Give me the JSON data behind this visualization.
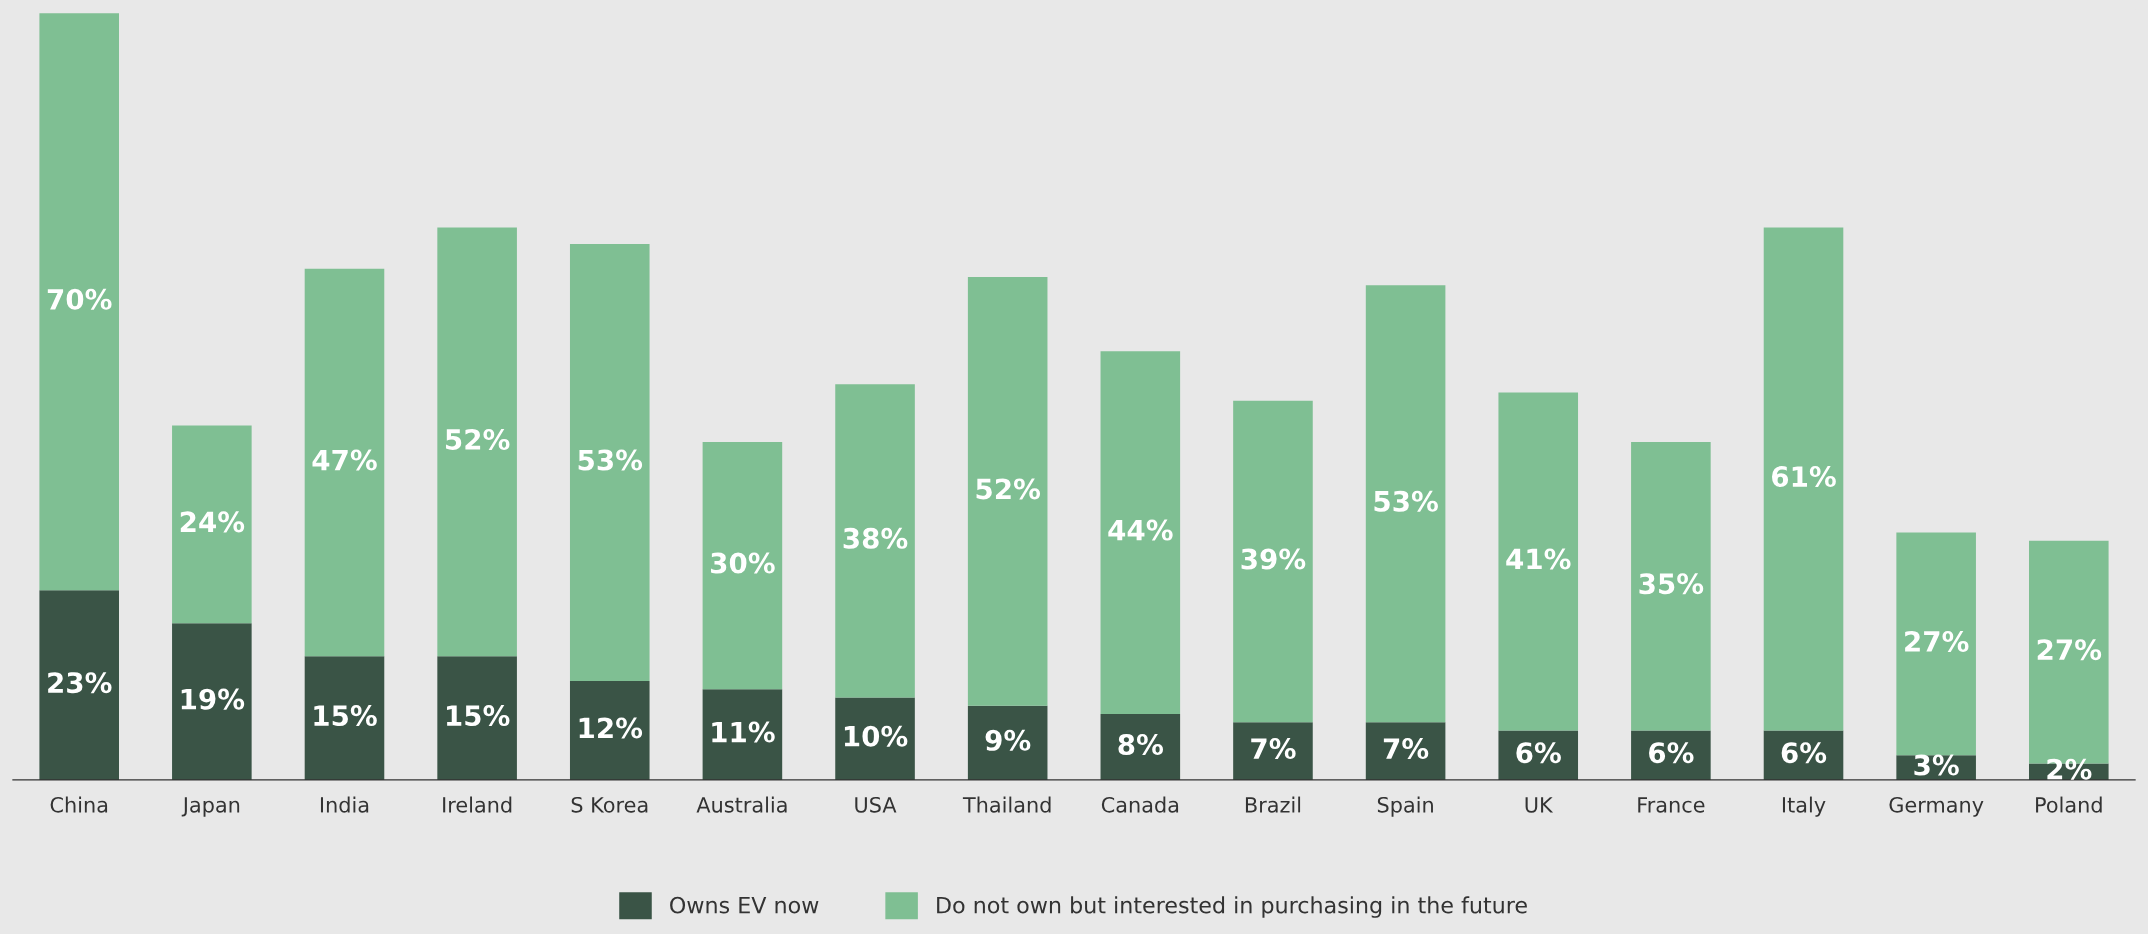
{
  "chart_data": {
    "type": "bar",
    "stacked": true,
    "categories": [
      "China",
      "Japan",
      "India",
      "Ireland",
      "S Korea",
      "Australia",
      "USA",
      "Thailand",
      "Canada",
      "Brazil",
      "Spain",
      "UK",
      "France",
      "Italy",
      "Germany",
      "Poland"
    ],
    "series": [
      {
        "name": "Owns EV now",
        "color": "#3a5446",
        "values": [
          23,
          19,
          15,
          15,
          12,
          11,
          10,
          9,
          8,
          7,
          7,
          6,
          6,
          6,
          3,
          2
        ],
        "value_labels": [
          "23%",
          "19%",
          "15%",
          "15%",
          "12%",
          "11%",
          "10%",
          "9%",
          "8%",
          "7%",
          "7%",
          "6%",
          "6%",
          "6%",
          "3%",
          "2%"
        ]
      },
      {
        "name": "Do not own but interested in purchasing in the future",
        "color": "#7fbf93",
        "values": [
          70,
          24,
          47,
          52,
          53,
          30,
          38,
          52,
          44,
          39,
          53,
          41,
          35,
          61,
          27,
          27
        ],
        "value_labels": [
          "70%",
          "24%",
          "47%",
          "52%",
          "53%",
          "30%",
          "38%",
          "52%",
          "44%",
          "39%",
          "53%",
          "41%",
          "35%",
          "61%",
          "27%",
          "27%"
        ]
      }
    ],
    "legend": "bottom",
    "grid": false
  }
}
